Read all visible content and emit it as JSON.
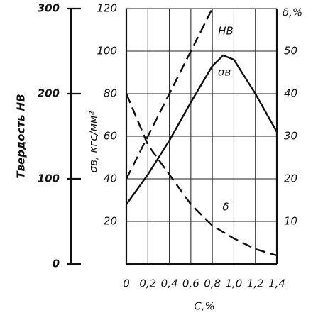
{
  "chart_data": {
    "type": "line",
    "xlabel": "C,%",
    "ylabel": "σв, кгс/мм²",
    "y2label": "δ,%",
    "y3label": "Твердость НВ",
    "xlim": [
      0,
      1.4
    ],
    "xticks": [
      0,
      {
        "value": 0.2,
        "label": "0,2"
      },
      {
        "value": 0.4,
        "label": "0,4"
      },
      {
        "value": 0.6,
        "label": "0,6"
      },
      {
        "value": 0.8,
        "label": "0,8"
      },
      {
        "value": 1.0,
        "label": "1,0"
      },
      {
        "value": 1.2,
        "label": "1,2"
      },
      {
        "value": 1.4,
        "label": "1,4"
      }
    ],
    "ylim": [
      0,
      120
    ],
    "yticks": [
      20,
      40,
      60,
      80,
      100,
      120
    ],
    "y2lim": [
      0,
      60
    ],
    "y2ticks": [
      10,
      20,
      30,
      40,
      50
    ],
    "y3lim": [
      0,
      300
    ],
    "y3ticks": [
      0,
      100,
      200,
      300
    ],
    "grid": true,
    "series": [
      {
        "name": "HB",
        "color": "#111111",
        "dashed": true,
        "axis": "y3",
        "x": [
          0,
          0.2,
          0.4,
          0.6,
          0.8
        ],
        "values": [
          100,
          150,
          200,
          250,
          300
        ]
      },
      {
        "name": "σв",
        "color": "#111111",
        "dashed": false,
        "axis": "y",
        "x": [
          0,
          0.2,
          0.4,
          0.6,
          0.8,
          0.9,
          1.0,
          1.2,
          1.4
        ],
        "values": [
          28,
          42,
          58,
          76,
          93,
          98,
          96,
          80,
          62
        ]
      },
      {
        "name": "δ",
        "color": "#111111",
        "dashed": true,
        "axis": "y2",
        "x": [
          0,
          0.2,
          0.4,
          0.6,
          0.8,
          1.0,
          1.2,
          1.4
        ],
        "values": [
          40,
          28,
          21,
          14,
          9,
          6,
          3.5,
          2
        ]
      }
    ]
  }
}
